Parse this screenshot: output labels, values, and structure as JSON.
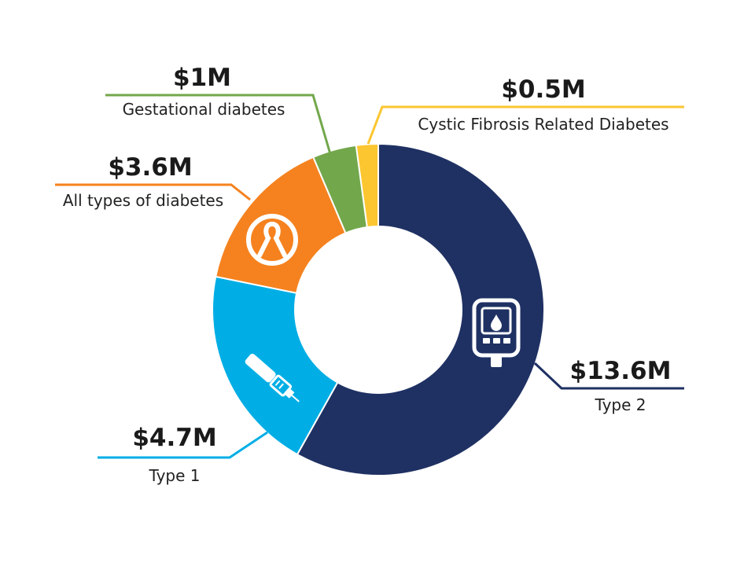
{
  "chart_data": {
    "type": "pie",
    "donut": true,
    "unit": "$M",
    "slices": [
      {
        "name": "Type 2",
        "value": 13.6,
        "display": "$13.6M",
        "color": "#1f3163",
        "icon": "glucose-meter-icon"
      },
      {
        "name": "Type 1",
        "value": 4.7,
        "display": "$4.7M",
        "color": "#00aee5",
        "icon": "insulin-pen-icon"
      },
      {
        "name": "All types of diabetes",
        "value": 3.6,
        "display": "$3.6M",
        "color": "#f5821f",
        "icon": "awareness-ribbon-icon"
      },
      {
        "name": "Gestational diabetes",
        "value": 1,
        "display": "$1M",
        "color": "#72a74b"
      },
      {
        "name": "Cystic Fibrosis Related Diabetes",
        "value": 0.5,
        "display": "$0.5M",
        "color": "#fcc630"
      }
    ]
  }
}
